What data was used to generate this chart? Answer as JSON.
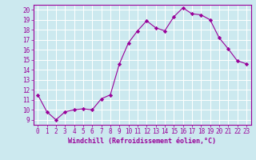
{
  "x": [
    0,
    1,
    2,
    3,
    4,
    5,
    6,
    7,
    8,
    9,
    10,
    11,
    12,
    13,
    14,
    15,
    16,
    17,
    18,
    19,
    20,
    21,
    22,
    23
  ],
  "y": [
    11.5,
    9.8,
    9.0,
    9.8,
    10.0,
    10.1,
    10.0,
    11.1,
    11.5,
    14.6,
    16.7,
    17.9,
    18.9,
    18.2,
    17.9,
    19.3,
    20.2,
    19.6,
    19.5,
    19.0,
    17.2,
    16.1,
    14.9,
    14.6
  ],
  "xlabel": "Windchill (Refroidissement éolien,°C)",
  "xlim": [
    -0.5,
    23.5
  ],
  "ylim": [
    8.5,
    20.5
  ],
  "yticks": [
    9,
    10,
    11,
    12,
    13,
    14,
    15,
    16,
    17,
    18,
    19,
    20
  ],
  "xticks": [
    0,
    1,
    2,
    3,
    4,
    5,
    6,
    7,
    8,
    9,
    10,
    11,
    12,
    13,
    14,
    15,
    16,
    17,
    18,
    19,
    20,
    21,
    22,
    23
  ],
  "line_color": "#990099",
  "marker": "D",
  "marker_size": 2.2,
  "bg_color": "#cce9ef",
  "grid_color": "#ffffff",
  "label_color": "#990099",
  "tick_color": "#990099",
  "font_size": 5.5,
  "xlabel_font_size": 6.0
}
